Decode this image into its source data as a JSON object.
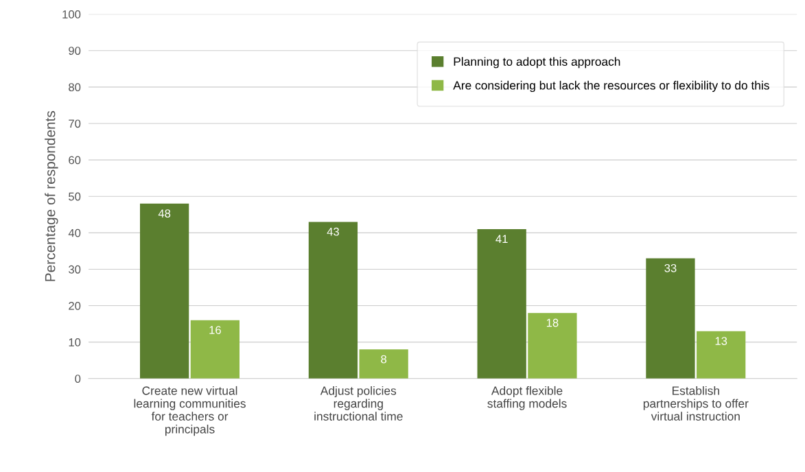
{
  "chart_data": {
    "type": "bar",
    "ylabel": "Percentage of respondents",
    "categories": [
      "Create new virtual\nlearning communities\nfor teachers or\nprincipals",
      "Adjust policies\nregarding\ninstructional time",
      "Adopt flexible\nstaffing models",
      "Establish\npartnerships to offer\nvirtual instruction"
    ],
    "series": [
      {
        "name": "Planning to adopt this approach",
        "color": "#5b7f2f",
        "values": [
          48,
          43,
          41,
          33
        ]
      },
      {
        "name": "Are considering but lack the resources or flexibility to do this",
        "color": "#8fb847",
        "values": [
          16,
          8,
          18,
          13
        ]
      }
    ],
    "ylim": [
      0,
      100
    ],
    "yticks": [
      0,
      10,
      20,
      30,
      40,
      50,
      60,
      70,
      80,
      90,
      100
    ],
    "grid": "y",
    "legend": "top right",
    "data_labels": true
  }
}
